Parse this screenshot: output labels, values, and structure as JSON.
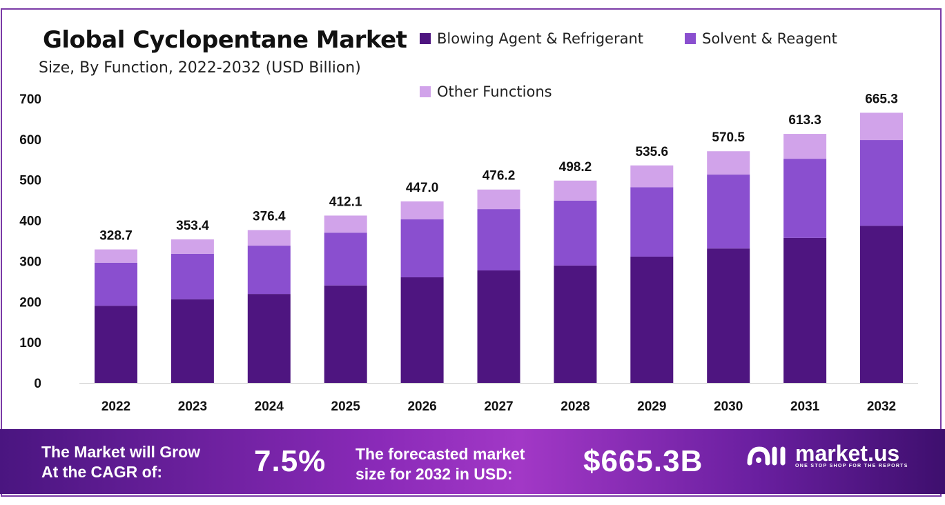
{
  "chart_data": {
    "type": "bar",
    "stacked": true,
    "title": "Global Cyclopentane Market",
    "subtitle": "Size, By Function, 2022-2032 (USD Billion)",
    "xlabel": "",
    "ylabel": "",
    "ylim": [
      0,
      700
    ],
    "yticks": [
      "0",
      "100",
      "200",
      "300",
      "400",
      "500",
      "600",
      "700"
    ],
    "categories": [
      "2022",
      "2023",
      "2024",
      "2025",
      "2026",
      "2027",
      "2028",
      "2029",
      "2030",
      "2031",
      "2032"
    ],
    "series": [
      {
        "name": "Blowing Agent & Refrigerant",
        "color": "#4e1580",
        "values": [
          190,
          206,
          219,
          240,
          260,
          277,
          289,
          311,
          331,
          357,
          387
        ]
      },
      {
        "name": "Solvent & Reagent",
        "color": "#8a4fcf",
        "values": [
          106,
          112,
          119,
          130,
          143,
          151,
          160,
          171,
          182,
          195,
          211
        ]
      },
      {
        "name": "Other Functions",
        "color": "#d1a3ea",
        "values": [
          32.7,
          35.4,
          38.4,
          42.1,
          44.0,
          48.2,
          49.2,
          53.6,
          57.5,
          61.3,
          67.3
        ]
      }
    ],
    "totals": [
      "328.7",
      "353.4",
      "376.4",
      "412.1",
      "447.0",
      "476.2",
      "498.2",
      "535.6",
      "570.5",
      "613.3",
      "665.3"
    ],
    "legend_position": "top-right",
    "grid": false
  },
  "banner": {
    "cagr_label": [
      "The Market will Grow",
      "At the CAGR of:"
    ],
    "cagr_value": "7.5%",
    "forecast_label": [
      "The forecasted market",
      "size for 2032 in USD:"
    ],
    "forecast_value": "$665.3B",
    "logo_name": "market.us",
    "logo_tagline": "ONE STOP SHOP FOR THE REPORTS"
  }
}
